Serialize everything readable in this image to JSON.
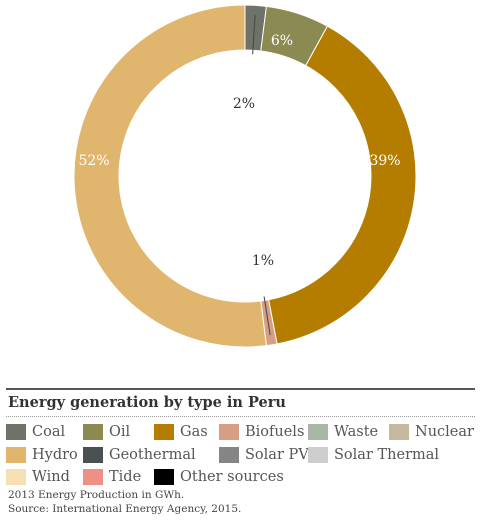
{
  "chart_data": {
    "type": "pie",
    "title": "Energy generation by type in Peru",
    "slices": [
      {
        "name": "Coal",
        "value": 2,
        "label": "2%",
        "color": "#6d7368"
      },
      {
        "name": "Oil",
        "value": 6,
        "label": "6%",
        "color": "#8b8a52"
      },
      {
        "name": "Gas",
        "value": 39,
        "label": "39%",
        "color": "#b57d00"
      },
      {
        "name": "Biofuels",
        "value": 1,
        "label": "1%",
        "color": "#d69e84"
      },
      {
        "name": "Hydro",
        "value": 52,
        "label": "52%",
        "color": "#e0b56e"
      }
    ],
    "legend": [
      {
        "name": "Coal",
        "color": "#6d7368"
      },
      {
        "name": "Oil",
        "color": "#8b8a52"
      },
      {
        "name": "Gas",
        "color": "#b57d00"
      },
      {
        "name": "Biofuels",
        "color": "#d69e84"
      },
      {
        "name": "Waste",
        "color": "#a9b7a6"
      },
      {
        "name": "Nuclear",
        "color": "#c4b99d"
      },
      {
        "name": "Hydro",
        "color": "#e0b56e"
      },
      {
        "name": "Geothermal",
        "color": "#4b5052"
      },
      {
        "name": "Solar PV",
        "color": "#858585"
      },
      {
        "name": "Solar Thermal",
        "color": "#cdcdcd"
      },
      {
        "name": "Wind",
        "color": "#f4dfb6"
      },
      {
        "name": "Tide",
        "color": "#f08f85"
      },
      {
        "name": "Other sources",
        "color": "#000000"
      }
    ],
    "legend_position": "bottom"
  },
  "notes": {
    "line1": "2013 Energy Production in GWh.",
    "line2": "Source: International Energy Agency, 2015."
  }
}
